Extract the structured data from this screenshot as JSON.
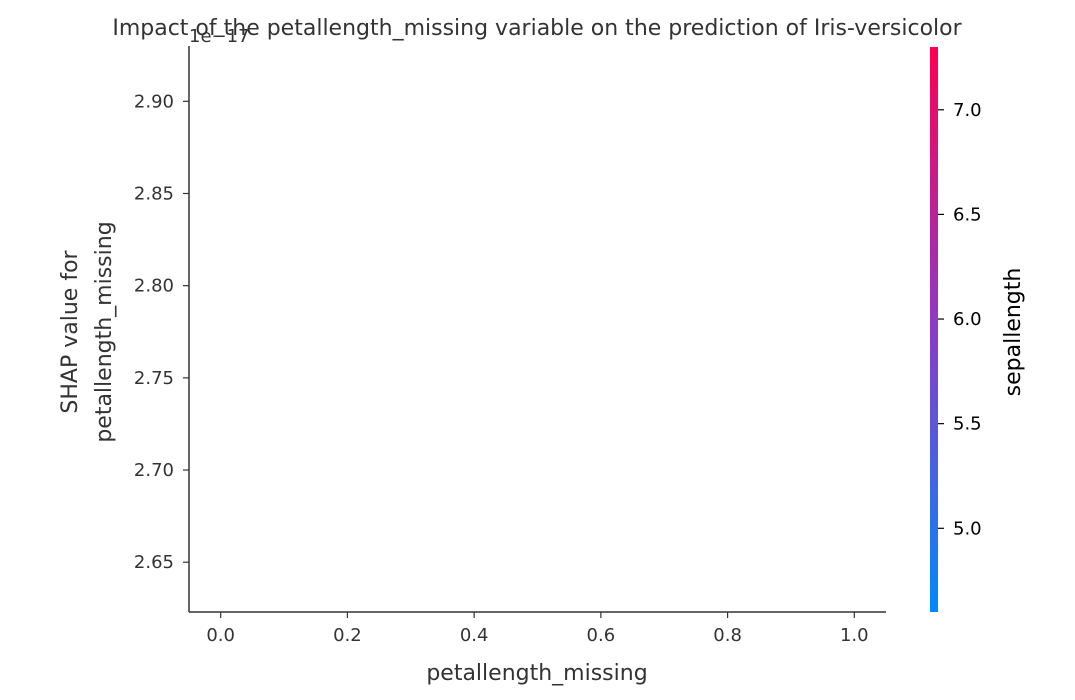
{
  "chart_data": {
    "type": "scatter",
    "title": "Impact of the petallength_missing variable on the prediction of Iris-versicolor",
    "xlabel": "petallength_missing",
    "ylabel": "SHAP value for\npetallength_missing",
    "y_offset_text": "1e−17",
    "x_ticks": [
      "0.0",
      "0.2",
      "0.4",
      "0.6",
      "0.8",
      "1.0"
    ],
    "x_tick_values": [
      0.0,
      0.2,
      0.4,
      0.6,
      0.8,
      1.0
    ],
    "xlim": [
      -0.05,
      1.05
    ],
    "y_ticks": [
      "2.90",
      "2.85",
      "2.80",
      "2.75",
      "2.70",
      "2.65"
    ],
    "y_tick_values": [
      2.9,
      2.85,
      2.8,
      2.75,
      2.7,
      2.65
    ],
    "ylim": [
      2.623,
      2.93
    ],
    "points": [],
    "colorbar": {
      "label": "sepallength",
      "ticks": [
        "7.0",
        "6.5",
        "6.0",
        "5.5",
        "5.0"
      ],
      "tick_values": [
        7.0,
        6.5,
        6.0,
        5.5,
        5.0
      ],
      "range": [
        4.6,
        7.3
      ],
      "color_low": "#008afb",
      "color_high": "#ff0052"
    },
    "grid": false
  }
}
